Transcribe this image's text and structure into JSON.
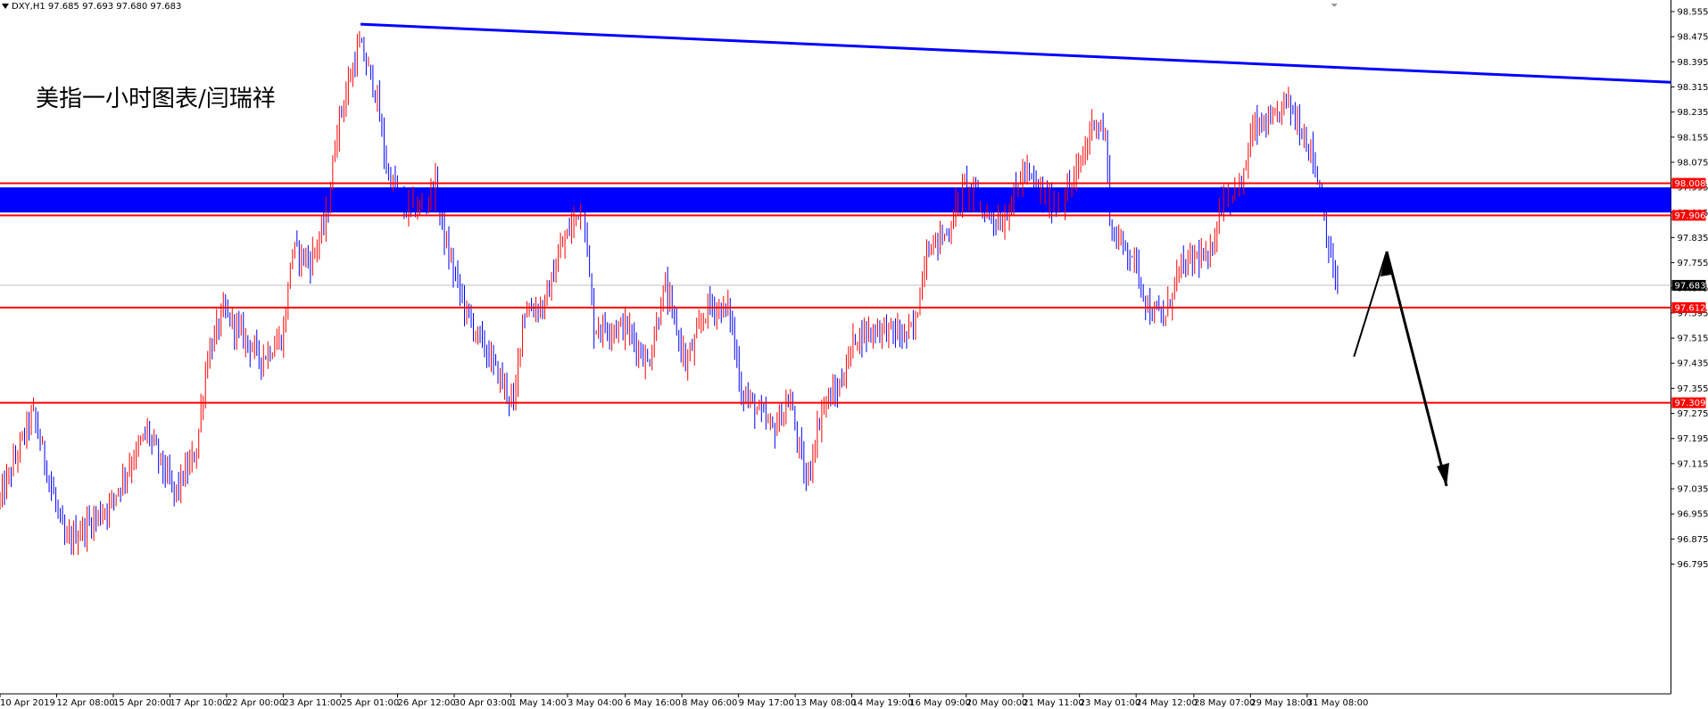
{
  "header": {
    "symbol_info": "DXY,H1  97.685 97.693 97.680 97.683"
  },
  "annotation": "美指一小时图表/闫瑞祥",
  "colors": {
    "bull": "#ff0000",
    "bear": "#0000ff",
    "trendline": "#0000ff",
    "level": "#ff0000",
    "zone": "#0000ff",
    "arrow": "#000000",
    "current_price_label": "#000000"
  },
  "chart_data": {
    "type": "candlestick",
    "symbol": "DXY",
    "timeframe": "H1",
    "ylim": [
      96.76,
      98.6
    ],
    "y_ticks": [
      "98.555",
      "98.475",
      "98.395",
      "98.315",
      "98.235",
      "98.155",
      "98.075",
      "97.995",
      "97.915",
      "97.835",
      "97.755",
      "97.675",
      "97.595",
      "97.515",
      "97.435",
      "97.355",
      "97.275",
      "97.195",
      "97.115",
      "97.035",
      "96.955",
      "96.875",
      "96.795"
    ],
    "x_ticks": [
      "10 Apr 2019",
      "12 Apr 08:00",
      "15 Apr 20:00",
      "17 Apr 10:00",
      "22 Apr 00:00",
      "23 Apr 11:00",
      "25 Apr 01:00",
      "26 Apr 12:00",
      "30 Apr 03:00",
      "1 May 14:00",
      "3 May 04:00",
      "6 May 16:00",
      "8 May 06:00",
      "9 May 17:00",
      "13 May 08:00",
      "14 May 19:00",
      "16 May 09:00",
      "20 May 00:00",
      "21 May 11:00",
      "23 May 01:00",
      "24 May 12:00",
      "28 May 07:00",
      "29 May 18:00",
      "31 May 08:00"
    ],
    "path_points": [
      {
        "x": 0,
        "y": 97.0
      },
      {
        "x": 30,
        "y": 97.28
      },
      {
        "x": 60,
        "y": 96.86
      },
      {
        "x": 100,
        "y": 96.98
      },
      {
        "x": 135,
        "y": 97.22
      },
      {
        "x": 160,
        "y": 97.02
      },
      {
        "x": 180,
        "y": 97.15
      },
      {
        "x": 190,
        "y": 97.45
      },
      {
        "x": 205,
        "y": 97.6
      },
      {
        "x": 240,
        "y": 97.45
      },
      {
        "x": 260,
        "y": 97.52
      },
      {
        "x": 268,
        "y": 97.8
      },
      {
        "x": 285,
        "y": 97.76
      },
      {
        "x": 300,
        "y": 97.9
      },
      {
        "x": 310,
        "y": 98.2
      },
      {
        "x": 330,
        "y": 98.45
      },
      {
        "x": 345,
        "y": 98.3
      },
      {
        "x": 355,
        "y": 98.05
      },
      {
        "x": 370,
        "y": 97.93
      },
      {
        "x": 385,
        "y": 97.93
      },
      {
        "x": 400,
        "y": 98.0
      },
      {
        "x": 410,
        "y": 97.8
      },
      {
        "x": 430,
        "y": 97.58
      },
      {
        "x": 450,
        "y": 97.45
      },
      {
        "x": 472,
        "y": 97.3
      },
      {
        "x": 480,
        "y": 97.6
      },
      {
        "x": 500,
        "y": 97.62
      },
      {
        "x": 515,
        "y": 97.8
      },
      {
        "x": 535,
        "y": 97.95
      },
      {
        "x": 545,
        "y": 97.55
      },
      {
        "x": 575,
        "y": 97.55
      },
      {
        "x": 595,
        "y": 97.43
      },
      {
        "x": 610,
        "y": 97.68
      },
      {
        "x": 630,
        "y": 97.43
      },
      {
        "x": 650,
        "y": 97.62
      },
      {
        "x": 670,
        "y": 97.6
      },
      {
        "x": 680,
        "y": 97.35
      },
      {
        "x": 710,
        "y": 97.22
      },
      {
        "x": 725,
        "y": 97.32
      },
      {
        "x": 740,
        "y": 97.05
      },
      {
        "x": 755,
        "y": 97.3
      },
      {
        "x": 770,
        "y": 97.35
      },
      {
        "x": 785,
        "y": 97.52
      },
      {
        "x": 810,
        "y": 97.55
      },
      {
        "x": 830,
        "y": 97.52
      },
      {
        "x": 840,
        "y": 97.55
      },
      {
        "x": 850,
        "y": 97.8
      },
      {
        "x": 870,
        "y": 97.85
      },
      {
        "x": 885,
        "y": 98.0
      },
      {
        "x": 905,
        "y": 97.92
      },
      {
        "x": 920,
        "y": 97.88
      },
      {
        "x": 940,
        "y": 98.05
      },
      {
        "x": 960,
        "y": 97.95
      },
      {
        "x": 975,
        "y": 97.95
      },
      {
        "x": 990,
        "y": 98.05
      },
      {
        "x": 1005,
        "y": 98.22
      },
      {
        "x": 1015,
        "y": 98.15
      },
      {
        "x": 1020,
        "y": 97.85
      },
      {
        "x": 1040,
        "y": 97.78
      },
      {
        "x": 1055,
        "y": 97.6
      },
      {
        "x": 1070,
        "y": 97.58
      },
      {
        "x": 1080,
        "y": 97.72
      },
      {
        "x": 1100,
        "y": 97.78
      },
      {
        "x": 1110,
        "y": 97.75
      },
      {
        "x": 1120,
        "y": 97.95
      },
      {
        "x": 1140,
        "y": 98.0
      },
      {
        "x": 1150,
        "y": 98.18
      },
      {
        "x": 1170,
        "y": 98.2
      },
      {
        "x": 1180,
        "y": 98.28
      },
      {
        "x": 1195,
        "y": 98.18
      },
      {
        "x": 1205,
        "y": 98.1
      },
      {
        "x": 1215,
        "y": 97.92
      },
      {
        "x": 1222,
        "y": 97.75
      },
      {
        "x": 1228,
        "y": 97.68
      }
    ],
    "trendline": {
      "start": [
        331,
        98.515
      ],
      "end": [
        1534,
        98.33
      ]
    },
    "levels": [
      {
        "value": 98.008,
        "label": "98.008"
      },
      {
        "value": 97.906,
        "label": "97.906"
      },
      {
        "value": 97.612,
        "label": "97.612"
      },
      {
        "value": 97.309,
        "label": "97.309"
      }
    ],
    "zone": {
      "from": 97.915,
      "to": 97.995
    },
    "current_price": {
      "value": 97.683,
      "label": "97.683"
    }
  }
}
